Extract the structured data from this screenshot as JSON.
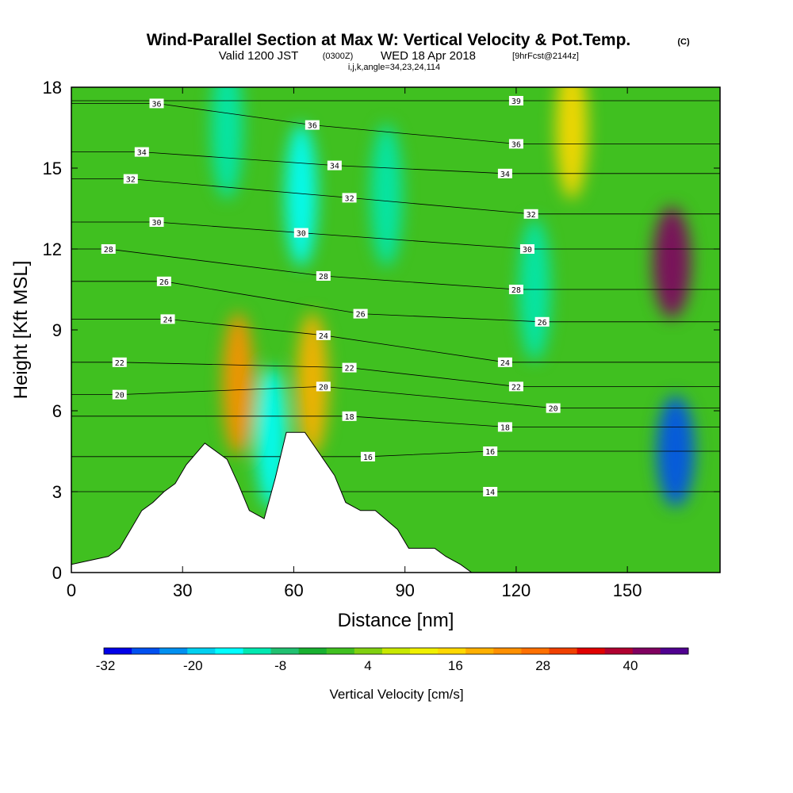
{
  "title": {
    "main": "Wind-Parallel Section at Max W: Vertical Velocity & Pot.Temp.",
    "copyright": "(C)",
    "valid_prefix": "Valid 1200 JST",
    "valid_utc": "(0300Z)",
    "valid_date": "WED 18 Apr 2018",
    "forecast": "[9hrFcst@2144z]",
    "indices": "i,j,k,angle=34,23,24,114"
  },
  "chart_data": {
    "type": "heatmap",
    "xlabel": "Distance [nm]",
    "ylabel": "Height [Kft MSL]",
    "xlim": [
      0,
      175
    ],
    "ylim": [
      0,
      18
    ],
    "x_ticks": [
      "0",
      "30",
      "60",
      "90",
      "120",
      "150"
    ],
    "x_tick_values": [
      0,
      30,
      60,
      90,
      120,
      150
    ],
    "y_ticks": [
      "0",
      "3",
      "6",
      "9",
      "12",
      "15",
      "18"
    ],
    "y_tick_values": [
      0,
      3,
      6,
      9,
      12,
      15,
      18
    ],
    "grid": false,
    "field": "Vertical Velocity",
    "terrain": [
      [
        0,
        0.3
      ],
      [
        10,
        0.6
      ],
      [
        13,
        0.9
      ],
      [
        16,
        1.6
      ],
      [
        19,
        2.3
      ],
      [
        22,
        2.6
      ],
      [
        25,
        3.0
      ],
      [
        28,
        3.3
      ],
      [
        31,
        4.0
      ],
      [
        36,
        4.8
      ],
      [
        42,
        4.2
      ],
      [
        45,
        3.3
      ],
      [
        48,
        2.3
      ],
      [
        52,
        2.0
      ],
      [
        55,
        3.5
      ],
      [
        58,
        5.2
      ],
      [
        63,
        5.2
      ],
      [
        68,
        4.2
      ],
      [
        71,
        3.6
      ],
      [
        74,
        2.6
      ],
      [
        78,
        2.3
      ],
      [
        82,
        2.3
      ],
      [
        88,
        1.6
      ],
      [
        91,
        0.9
      ],
      [
        98,
        0.9
      ],
      [
        101,
        0.6
      ],
      [
        105,
        0.3
      ],
      [
        108,
        0.0
      ]
    ],
    "velocity_features": [
      {
        "x": 162,
        "y": 11.5,
        "w": 44,
        "kind": "updraft"
      },
      {
        "x": 163,
        "y": 4.5,
        "w": -30,
        "kind": "downdraft"
      },
      {
        "x": 125,
        "y": 10.5,
        "w": -12,
        "kind": "downdraft"
      },
      {
        "x": 65,
        "y": 7.0,
        "w": 20,
        "kind": "updraft"
      },
      {
        "x": 45,
        "y": 7.0,
        "w": 22,
        "kind": "updraft"
      },
      {
        "x": 62,
        "y": 14.0,
        "w": -15,
        "kind": "downdraft"
      },
      {
        "x": 42,
        "y": 16.5,
        "w": -14,
        "kind": "downdraft"
      },
      {
        "x": 85,
        "y": 14.0,
        "w": -12,
        "kind": "downdraft"
      },
      {
        "x": 135,
        "y": 16.5,
        "w": 14,
        "kind": "updraft"
      },
      {
        "x": 54,
        "y": 5.0,
        "w": -16,
        "kind": "downdraft"
      }
    ],
    "theta_contours": [
      {
        "label": "14",
        "x": 113,
        "y": 3.0
      },
      {
        "label": "16",
        "x": 80,
        "y": 4.3
      },
      {
        "label": "16",
        "x": 113,
        "y": 4.5
      },
      {
        "label": "18",
        "x": 75,
        "y": 5.8
      },
      {
        "label": "18",
        "x": 117,
        "y": 5.4
      },
      {
        "label": "20",
        "x": 13,
        "y": 6.6
      },
      {
        "label": "20",
        "x": 68,
        "y": 6.9
      },
      {
        "label": "20",
        "x": 130,
        "y": 6.1
      },
      {
        "label": "22",
        "x": 13,
        "y": 7.8
      },
      {
        "label": "22",
        "x": 75,
        "y": 7.6
      },
      {
        "label": "22",
        "x": 120,
        "y": 6.9
      },
      {
        "label": "24",
        "x": 26,
        "y": 9.4
      },
      {
        "label": "24",
        "x": 68,
        "y": 8.8
      },
      {
        "label": "24",
        "x": 117,
        "y": 7.8
      },
      {
        "label": "26",
        "x": 25,
        "y": 10.8
      },
      {
        "label": "26",
        "x": 78,
        "y": 9.6
      },
      {
        "label": "26",
        "x": 127,
        "y": 9.3
      },
      {
        "label": "28",
        "x": 10,
        "y": 12.0
      },
      {
        "label": "28",
        "x": 68,
        "y": 11.0
      },
      {
        "label": "28",
        "x": 120,
        "y": 10.5
      },
      {
        "label": "30",
        "x": 23,
        "y": 13.0
      },
      {
        "label": "30",
        "x": 62,
        "y": 12.6
      },
      {
        "label": "30",
        "x": 123,
        "y": 12.0
      },
      {
        "label": "32",
        "x": 16,
        "y": 14.6
      },
      {
        "label": "32",
        "x": 75,
        "y": 13.9
      },
      {
        "label": "32",
        "x": 124,
        "y": 13.3
      },
      {
        "label": "34",
        "x": 19,
        "y": 15.6
      },
      {
        "label": "34",
        "x": 71,
        "y": 15.1
      },
      {
        "label": "34",
        "x": 117,
        "y": 14.8
      },
      {
        "label": "36",
        "x": 23,
        "y": 17.4
      },
      {
        "label": "36",
        "x": 65,
        "y": 16.6
      },
      {
        "label": "36",
        "x": 120,
        "y": 15.9
      },
      {
        "label": "39",
        "x": 120,
        "y": 17.5
      }
    ]
  },
  "colorbar": {
    "title": "Vertical Velocity [cm/s]",
    "labels": [
      "-32",
      "-20",
      "-8",
      "4",
      "16",
      "28",
      "40"
    ],
    "colors": [
      "#0000e8",
      "#0050f0",
      "#0090f0",
      "#00d0f0",
      "#00ffff",
      "#00e8b0",
      "#20c070",
      "#18b030",
      "#40c020",
      "#80d010",
      "#c8e800",
      "#f0f000",
      "#ffd800",
      "#ffb000",
      "#ff9000",
      "#ff7000",
      "#f04000",
      "#e00000",
      "#b00030",
      "#800060",
      "#500090"
    ]
  }
}
